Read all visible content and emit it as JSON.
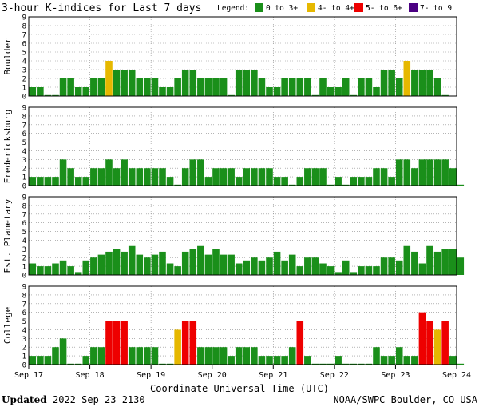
{
  "title": "3-hour K-indices for Last 7 days",
  "legend": {
    "label": "Legend:",
    "items": [
      {
        "text": "0 to 3+",
        "color": "#1a8f1a"
      },
      {
        "text": "4- to 4+",
        "color": "#e6b800"
      },
      {
        "text": "5- to 6+",
        "color": "#ee0000"
      },
      {
        "text": "7- to 9",
        "color": "#4b0082"
      }
    ]
  },
  "xlabel": "Coordinate Universal Time (UTC)",
  "footer": {
    "updated_label": "Updated",
    "updated_value": "2022 Sep 23 2130",
    "source": "NOAA/SWPC Boulder, CO USA"
  },
  "chart_data": {
    "type": "bar",
    "x_ticks": [
      "Sep 17",
      "Sep 18",
      "Sep 19",
      "Sep 20",
      "Sep 21",
      "Sep 22",
      "Sep 23",
      "Sep 24"
    ],
    "ylim": [
      0,
      9
    ],
    "y_ticks": [
      0,
      1,
      2,
      3,
      4,
      5,
      6,
      7,
      8,
      9
    ],
    "grid": true,
    "intervals_per_day": 8,
    "series": [
      {
        "name": "Boulder",
        "values": [
          1,
          1,
          0,
          0,
          2,
          2,
          1,
          1,
          2,
          2,
          4,
          3,
          3,
          3,
          2,
          2,
          2,
          1,
          1,
          2,
          3,
          3,
          2,
          2,
          2,
          2,
          0,
          3,
          3,
          3,
          2,
          1,
          1,
          2,
          2,
          2,
          2,
          0,
          2,
          1,
          1,
          2,
          0,
          2,
          2,
          1,
          3,
          3,
          2,
          4,
          3,
          3,
          3,
          2,
          0
        ]
      },
      {
        "name": "Fredericksburg",
        "values": [
          1,
          1,
          1,
          1,
          3,
          2,
          1,
          1,
          2,
          2,
          3,
          2,
          3,
          2,
          2,
          2,
          2,
          2,
          1,
          0,
          2,
          3,
          3,
          1,
          2,
          2,
          2,
          1,
          2,
          2,
          2,
          2,
          1,
          1,
          0,
          1,
          2,
          2,
          2,
          0,
          1,
          0,
          1,
          1,
          1,
          2,
          2,
          1,
          3,
          3,
          2,
          3,
          3,
          3,
          3,
          2,
          0
        ]
      },
      {
        "name": "Est. Planetary",
        "values": [
          1.33,
          1,
          1,
          1.33,
          1.67,
          1,
          0.33,
          1.67,
          2,
          2.33,
          2.67,
          3,
          2.67,
          3.33,
          2.33,
          2,
          2.33,
          2.67,
          1.33,
          1,
          2.67,
          3,
          3.33,
          2.33,
          3,
          2.33,
          2.33,
          1.33,
          1.67,
          2,
          1.67,
          2,
          2.67,
          1.67,
          2.33,
          1,
          2,
          2,
          1.33,
          1,
          0.33,
          1.67,
          0.33,
          1,
          1,
          1,
          2,
          2,
          1.67,
          3.33,
          2.67,
          1.33,
          3.33,
          2.67,
          3,
          3,
          2
        ]
      },
      {
        "name": "College",
        "values": [
          1,
          1,
          1,
          2,
          3,
          0,
          0,
          1,
          2,
          2,
          5,
          5,
          5,
          2,
          2,
          2,
          2,
          0,
          0,
          4,
          5,
          5,
          2,
          2,
          2,
          2,
          1,
          2,
          2,
          2,
          1,
          1,
          1,
          1,
          2,
          5,
          1,
          0,
          0,
          0,
          1,
          0,
          0,
          0,
          0,
          2,
          1,
          1,
          2,
          1,
          1,
          6,
          5,
          4,
          5,
          1,
          0
        ]
      }
    ]
  }
}
